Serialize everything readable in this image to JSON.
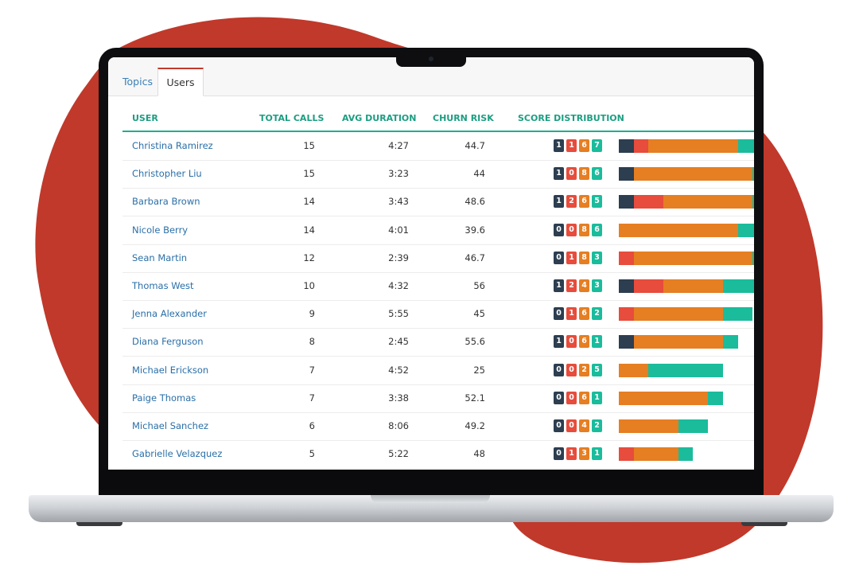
{
  "colors": {
    "blob": "#c0392b",
    "accent": "#1c9e82",
    "link": "#2a6fa8",
    "s1": "#2c3e50",
    "s2": "#e74c3c",
    "s3": "#e67e22",
    "s4": "#1abc9c"
  },
  "tabs": [
    {
      "label": "Topics"
    },
    {
      "label": "Users"
    }
  ],
  "active_tab": "Users",
  "columns": {
    "user": "USER",
    "calls": "TOTAL CALLS",
    "duration": "AVG DURATION",
    "risk": "CHURN RISK",
    "dist": "SCORE DISTRIBUTION"
  },
  "rows": [
    {
      "name": "Christina Ramirez",
      "calls": "15",
      "duration": "4:27",
      "risk": "44.7",
      "dist": [
        1,
        1,
        6,
        7
      ]
    },
    {
      "name": "Christopher Liu",
      "calls": "15",
      "duration": "3:23",
      "risk": "44",
      "dist": [
        1,
        0,
        8,
        6
      ]
    },
    {
      "name": "Barbara Brown",
      "calls": "14",
      "duration": "3:43",
      "risk": "48.6",
      "dist": [
        1,
        2,
        6,
        5
      ]
    },
    {
      "name": "Nicole Berry",
      "calls": "14",
      "duration": "4:01",
      "risk": "39.6",
      "dist": [
        0,
        0,
        8,
        6
      ]
    },
    {
      "name": "Sean Martin",
      "calls": "12",
      "duration": "2:39",
      "risk": "46.7",
      "dist": [
        0,
        1,
        8,
        3
      ]
    },
    {
      "name": "Thomas West",
      "calls": "10",
      "duration": "4:32",
      "risk": "56",
      "dist": [
        1,
        2,
        4,
        3
      ]
    },
    {
      "name": "Jenna Alexander",
      "calls": "9",
      "duration": "5:55",
      "risk": "45",
      "dist": [
        0,
        1,
        6,
        2
      ]
    },
    {
      "name": "Diana Ferguson",
      "calls": "8",
      "duration": "2:45",
      "risk": "55.6",
      "dist": [
        1,
        0,
        6,
        1
      ]
    },
    {
      "name": "Michael Erickson",
      "calls": "7",
      "duration": "4:52",
      "risk": "25",
      "dist": [
        0,
        0,
        2,
        5
      ]
    },
    {
      "name": "Paige Thomas",
      "calls": "7",
      "duration": "3:38",
      "risk": "52.1",
      "dist": [
        0,
        0,
        6,
        1
      ]
    },
    {
      "name": "Michael Sanchez",
      "calls": "6",
      "duration": "8:06",
      "risk": "49.2",
      "dist": [
        0,
        0,
        4,
        2
      ]
    },
    {
      "name": "Gabrielle Velazquez",
      "calls": "5",
      "duration": "5:22",
      "risk": "48",
      "dist": [
        0,
        1,
        3,
        1
      ]
    }
  ]
}
